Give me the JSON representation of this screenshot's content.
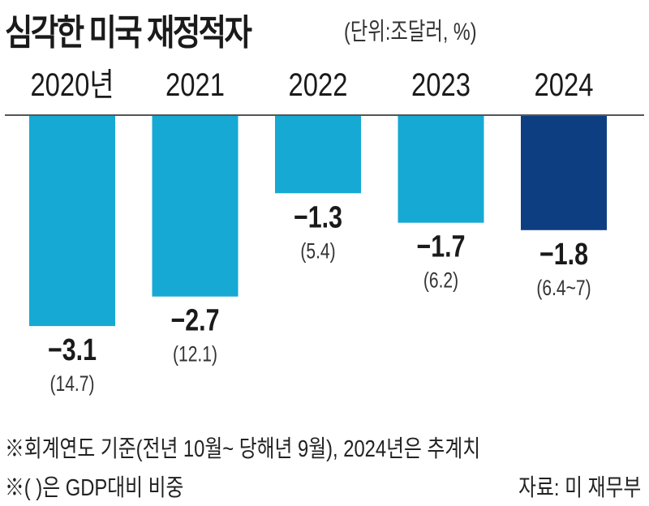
{
  "chart_data": {
    "type": "bar",
    "title": "심각한 미국 재정적자",
    "unit_label": "(단위:조달러, %)",
    "categories": [
      "2020년",
      "2021",
      "2022",
      "2023",
      "2024"
    ],
    "values": [
      -3.1,
      -2.7,
      -1.3,
      -1.7,
      -1.8
    ],
    "value_labels": [
      "−3.1",
      "−2.7",
      "−1.3",
      "−1.7",
      "−1.8"
    ],
    "gdp_ratio_labels": [
      "(14.7)",
      "(12.1)",
      "(5.4)",
      "(6.2)",
      "(6.4~7)"
    ],
    "colors": [
      "#16a9d3",
      "#16a9d3",
      "#16a9d3",
      "#16a9d3",
      "#0e3e82"
    ],
    "axis_color": "#555555",
    "xlabel": "",
    "ylabel": "",
    "notes": [
      "※회계연도 기준(전년 10월~ 당해년 9월), 2024년은 추계치",
      "※( )은 GDP대비 비중"
    ],
    "source": "자료: 미 재무부"
  }
}
